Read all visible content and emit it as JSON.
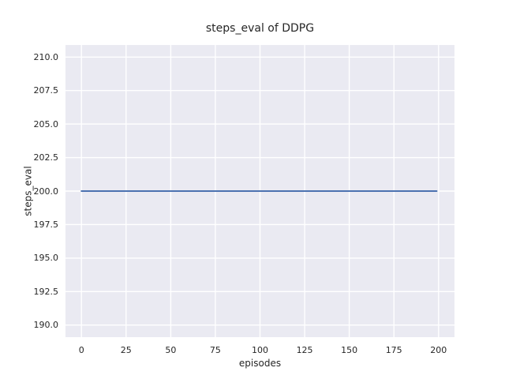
{
  "figure": {
    "background": "#ffffff"
  },
  "chart_data": {
    "type": "line",
    "title": "steps_eval of DDPG",
    "xlabel": "episodes",
    "ylabel": "steps_eval",
    "xlim": [
      -8.95,
      208.95
    ],
    "ylim": [
      189.1,
      210.9
    ],
    "xticks": {
      "values": [
        0,
        25,
        50,
        75,
        100,
        125,
        150,
        175,
        200
      ],
      "labels": [
        "0",
        "25",
        "50",
        "75",
        "100",
        "125",
        "150",
        "175",
        "200"
      ]
    },
    "yticks": {
      "values": [
        190.0,
        192.5,
        195.0,
        197.5,
        200.0,
        202.5,
        205.0,
        207.5,
        210.0
      ],
      "labels": [
        "190.0",
        "192.5",
        "195.0",
        "197.5",
        "200.0",
        "202.5",
        "205.0",
        "207.5",
        "210.0"
      ]
    },
    "grid": true,
    "legend": null,
    "series": [
      {
        "name": "steps_eval",
        "color": "#4c72b0",
        "x": [
          0,
          199
        ],
        "values": [
          200,
          200
        ],
        "note": "constant value 200 across all episodes 0-199"
      }
    ],
    "style": {
      "plot_background": "#eaeaf2",
      "grid_color": "#ffffff",
      "text_color": "#262626",
      "line_width": 2
    }
  }
}
